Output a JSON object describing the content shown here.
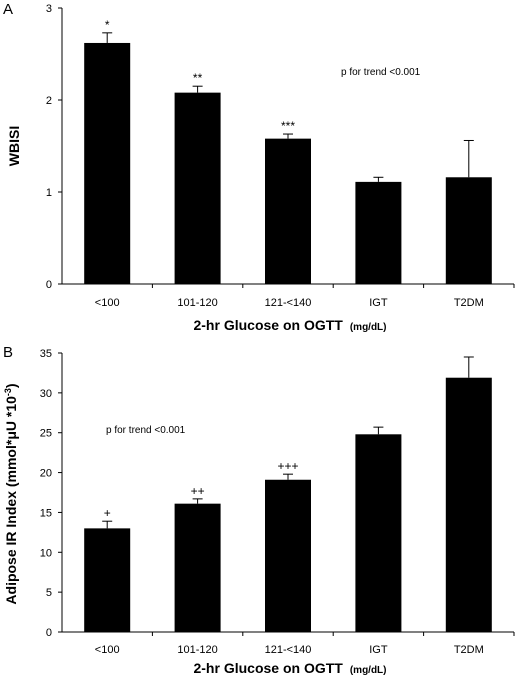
{
  "chart_data": [
    {
      "type": "bar",
      "panel": "A",
      "categories": [
        "<100",
        "101-120",
        "121-<140",
        "IGT",
        "T2DM"
      ],
      "values": [
        2.62,
        2.08,
        1.58,
        1.11,
        1.16
      ],
      "errors": [
        0.11,
        0.07,
        0.05,
        0.05,
        0.4
      ],
      "significance": [
        "*",
        "**",
        "***",
        "",
        ""
      ],
      "ylabel": "WBISI",
      "xlabel": "2-hr Glucose on OGTT",
      "xlabel_unit": "(mg/dL)",
      "yticks": [
        "0",
        "1",
        "2",
        "3"
      ],
      "ylim": [
        0,
        3
      ],
      "annotation": "p for trend <0.001",
      "grid": false
    },
    {
      "type": "bar",
      "panel": "B",
      "categories": [
        "<100",
        "101-120",
        "121-<140",
        "IGT",
        "T2DM"
      ],
      "values": [
        13.0,
        16.1,
        19.1,
        24.8,
        31.9
      ],
      "errors": [
        0.9,
        0.6,
        0.7,
        0.9,
        2.6
      ],
      "significance": [
        "+",
        "++",
        "+++",
        "",
        ""
      ],
      "ylabel": "Adipose IR Index (mmol*μU *10",
      "ylabel_sup": "-3",
      "ylabel_end": ")",
      "xlabel": "2-hr Glucose on OGTT",
      "xlabel_unit": "(mg/dL)",
      "yticks": [
        "0",
        "5",
        "10",
        "15",
        "20",
        "25",
        "30",
        "35"
      ],
      "ylim": [
        0,
        35
      ],
      "annotation": "p for trend <0.001",
      "grid": false
    }
  ],
  "colors": {
    "bar": "#000000",
    "axis": "#000000",
    "background": "#ffffff"
  }
}
